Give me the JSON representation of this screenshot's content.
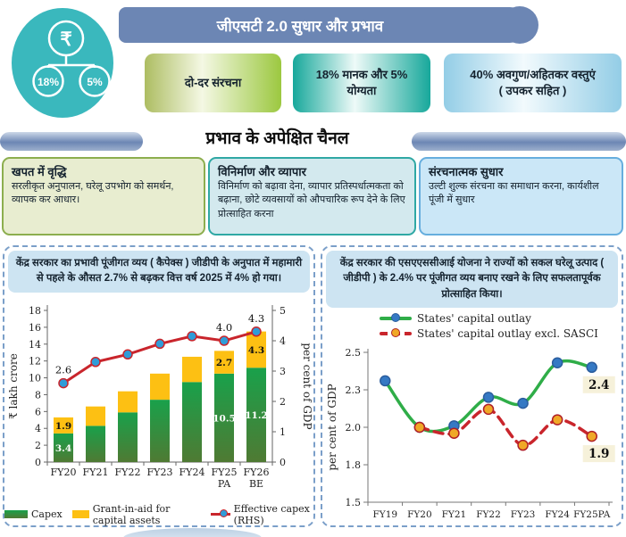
{
  "header": {
    "title": "जीएसटी 2.0 सुधार और प्रभाव",
    "icon": {
      "currency": "₹",
      "rate1": "18%",
      "rate2": "5%"
    }
  },
  "rate_boxes": [
    {
      "label": "दो-दर संरचना"
    },
    {
      "label": "18% मानक और 5% योग्यता"
    },
    {
      "label": "40% अवगुण/अहितकर वस्तुएं",
      "label2": "( उपकर सहित )"
    }
  ],
  "channels": {
    "heading": "प्रभाव के अपेक्षित चैनल",
    "boxes": [
      {
        "title": "खपत में वृद्धि",
        "body": "सरलीकृत अनुपालन, घरेलू उपभोग को समर्थन, व्यापक कर आधार।"
      },
      {
        "title": "विनिर्माण और व्यापार",
        "body": "विनिर्माण को बढ़ावा देना, व्यापार प्रतिस्पर्धात्मकता को बढ़ाना, छोटे व्यवसायों को औपचारिक रूप देने के लिए प्रोत्साहित करना"
      },
      {
        "title": "संरचनात्मक सुधार",
        "body": "उल्टी शुल्क संरचना का समाधान करना, कार्यशील पूंजी में सुधार"
      }
    ]
  },
  "left_panel": {
    "title": "केंद्र सरकार का प्रभावी पूंजीगत व्यय ( कैपेक्स ) जीडीपी के अनुपात में महामारी से पहले के औसत 2.7% से बढ़कर वित्त वर्ष 2025 में 4% हो गया।"
  },
  "right_panel": {
    "title": "केंद्र सरकार की एसएएससीआई योजना ने राज्यों को सकल घरेलू उत्पाद ( जीडीपी ) के 2.4% पर पूंजीगत व्यय बनाए रखने के लिए सफलतापूर्वक प्रोत्साहित किया।"
  },
  "chart_data": [
    {
      "type": "bar",
      "subtype": "stacked-bar-with-line",
      "categories": [
        "FY20",
        "FY21",
        "FY22",
        "FY23",
        "FY24",
        "FY25",
        "FY26"
      ],
      "category_sublabels": [
        "",
        "",
        "",
        "",
        "",
        "PA",
        "BE"
      ],
      "left_axis": {
        "label": "₹ lakh crore",
        "min": 0,
        "max": 18,
        "step": 2
      },
      "right_axis": {
        "label": "per cent of GDP",
        "min": 0,
        "max": 5,
        "step": 1
      },
      "series": [
        {
          "name": "Capex",
          "type": "bar",
          "color_top": "#19a14b",
          "color_bottom": "#4f7a33",
          "values": [
            3.4,
            4.3,
            5.9,
            7.4,
            9.5,
            10.5,
            11.2
          ],
          "labels": [
            "3.4",
            "",
            "",
            "",
            "",
            "10.5",
            "11.2"
          ]
        },
        {
          "name": "Grant-in-aid for capital assets",
          "type": "bar",
          "color": "#fdc013",
          "values": [
            1.9,
            2.3,
            2.5,
            3.1,
            3.0,
            2.7,
            4.3
          ],
          "labels": [
            "1.9",
            "",
            "",
            "",
            "",
            "2.7",
            "4.3"
          ]
        },
        {
          "name": "Effective capex (RHS)",
          "type": "line",
          "axis": "right",
          "color": "#c9252c",
          "marker_fill": "#2f9cd8",
          "values": [
            2.6,
            3.3,
            3.55,
            3.9,
            4.15,
            4.0,
            4.3
          ],
          "labels": [
            "2.6",
            "",
            "",
            "",
            "",
            "4.0",
            "4.3"
          ]
        }
      ],
      "legend_position": "bottom",
      "grid": false
    },
    {
      "type": "line",
      "categories": [
        "FY19",
        "FY20",
        "FY21",
        "FY22",
        "FY23",
        "FY24",
        "FY25PA"
      ],
      "yaxis": {
        "label": "per cent of GDP",
        "min": 1.5,
        "max": 2.5,
        "ticks": [
          {
            "label": "2.5",
            "value": 2.5
          },
          {
            "label": "2.3",
            "value": 2.25
          },
          {
            "label": "2.0",
            "value": 2.0
          },
          {
            "label": "1.8",
            "value": 1.75
          },
          {
            "label": "1.5",
            "value": 1.5
          }
        ]
      },
      "series": [
        {
          "name": "States' capital outlay",
          "color": "#2fad48",
          "dash": "",
          "marker_fill": "#3579c4",
          "marker_stroke": "#2b5d9e",
          "values": [
            2.31,
            2.0,
            2.01,
            2.2,
            2.16,
            2.43,
            2.4
          ],
          "end_label": "2.4"
        },
        {
          "name": "States' capital outlay excl. SASCI",
          "color": "#c9252c",
          "dash": "10 7",
          "marker_fill": "#f0a827",
          "marker_stroke": "#b01f26",
          "values": [
            null,
            2.0,
            1.96,
            2.12,
            1.88,
            2.05,
            1.94
          ],
          "end_label": "1.9"
        }
      ],
      "end_label_bg": "#f6f1da",
      "legend_position": "top",
      "grid": false
    }
  ]
}
